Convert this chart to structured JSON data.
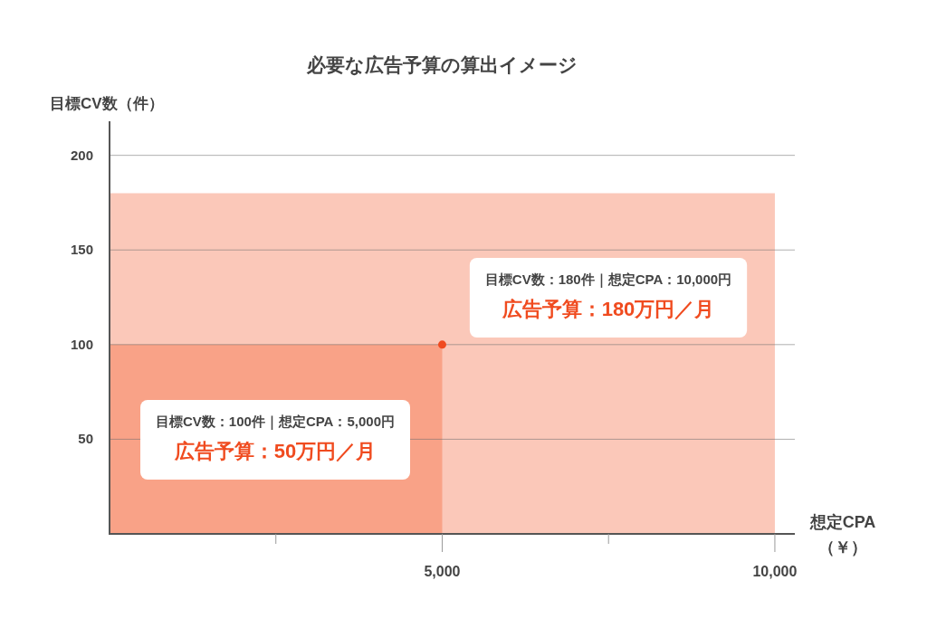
{
  "chart_data": {
    "type": "area",
    "title": "必要な広告予算の算出イメージ",
    "xlabel": "想定CPA\n（￥）",
    "ylabel": "目標CV数（件）",
    "xlim": [
      0,
      10300
    ],
    "ylim": [
      0,
      218
    ],
    "xticks": [
      {
        "value": 2500,
        "label": null
      },
      {
        "value": 5000,
        "label": "5,000"
      },
      {
        "value": 7500,
        "label": null
      },
      {
        "value": 10000,
        "label": "10,000"
      }
    ],
    "yticks": [
      50,
      100,
      150,
      200
    ],
    "grid": "y",
    "series": [
      {
        "color": "#fbc8b9",
        "x": [
          0,
          10000
        ],
        "values": [
          180,
          180
        ]
      },
      {
        "color": "#f9a287",
        "x": [
          0,
          5000
        ],
        "values": [
          100,
          100
        ]
      },
      {
        "type": "scatter",
        "color": "#f04b1f",
        "marker": "circle",
        "x": [
          5000
        ],
        "values": [
          100
        ]
      }
    ],
    "annotations": [
      "目標CV数：100件｜想定CPA：5,000円",
      "広告予算：50万円／月",
      "目標CV数：180件｜想定CPA：10,000円",
      "広告予算：180万円／月"
    ]
  }
}
